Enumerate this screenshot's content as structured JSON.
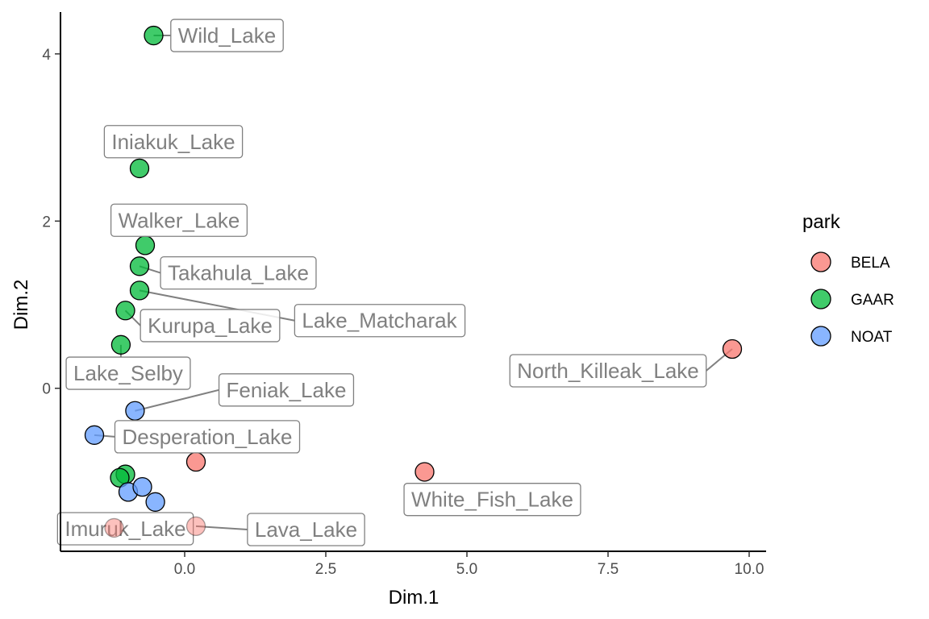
{
  "chart_data": {
    "type": "scatter",
    "title": "",
    "xlabel": "Dim.1",
    "ylabel": "Dim.2",
    "xlim": [
      -2.2,
      10.3
    ],
    "ylim": [
      -1.95,
      4.5
    ],
    "xticks": [
      {
        "value": 0,
        "label": "0.0"
      },
      {
        "value": 2.5,
        "label": "2.5"
      },
      {
        "value": 5,
        "label": "5.0"
      },
      {
        "value": 7.5,
        "label": "7.5"
      },
      {
        "value": 10,
        "label": "10.0"
      }
    ],
    "yticks": [
      {
        "value": 0,
        "label": "0"
      },
      {
        "value": 2,
        "label": "2"
      },
      {
        "value": 4,
        "label": "4"
      }
    ],
    "grid": false,
    "legend": {
      "title": "park",
      "position": "right",
      "entries": [
        {
          "name": "BELA",
          "color": "#F8766D"
        },
        {
          "name": "GAAR",
          "color": "#00BA38"
        },
        {
          "name": "NOAT",
          "color": "#619CFF"
        }
      ]
    },
    "points": [
      {
        "x": -0.55,
        "y": 4.22,
        "park": "GAAR",
        "label": "Wild_Lake",
        "lx": 0.75,
        "ly": 4.22
      },
      {
        "x": -0.8,
        "y": 2.63,
        "park": "GAAR",
        "label": "Iniakuk_Lake",
        "lx": -0.2,
        "ly": 2.95
      },
      {
        "x": -0.7,
        "y": 1.71,
        "park": "GAAR",
        "label": "Walker_Lake",
        "lx": -0.1,
        "ly": 2.01
      },
      {
        "x": -0.8,
        "y": 1.46,
        "park": "GAAR",
        "label": "Takahula_Lake",
        "lx": 0.95,
        "ly": 1.38
      },
      {
        "x": -0.8,
        "y": 1.17,
        "park": "GAAR",
        "label": "Lake_Matcharak",
        "lx": 3.45,
        "ly": 0.81
      },
      {
        "x": -1.05,
        "y": 0.93,
        "park": "GAAR",
        "label": "Kurupa_Lake",
        "lx": 0.45,
        "ly": 0.75
      },
      {
        "x": -1.13,
        "y": 0.52,
        "park": "GAAR",
        "label": "Lake_Selby",
        "lx": -1.0,
        "ly": 0.18
      },
      {
        "x": -0.88,
        "y": -0.27,
        "park": "NOAT",
        "label": "Feniak_Lake",
        "lx": 1.8,
        "ly": -0.02
      },
      {
        "x": -1.6,
        "y": -0.56,
        "park": "NOAT",
        "label": "Desperation_Lake",
        "lx": 0.4,
        "ly": -0.58
      },
      {
        "x": 0.2,
        "y": -0.88,
        "park": "BELA",
        "label": "",
        "lx": null,
        "ly": null
      },
      {
        "x": -1.05,
        "y": -1.03,
        "park": "GAAR",
        "label": "",
        "lx": null,
        "ly": null
      },
      {
        "x": -1.15,
        "y": -1.07,
        "park": "GAAR",
        "label": "",
        "lx": null,
        "ly": null
      },
      {
        "x": -1.0,
        "y": -1.24,
        "park": "NOAT",
        "label": "",
        "lx": null,
        "ly": null
      },
      {
        "x": -0.75,
        "y": -1.18,
        "park": "NOAT",
        "label": "",
        "lx": null,
        "ly": null
      },
      {
        "x": -0.52,
        "y": -1.36,
        "park": "NOAT",
        "label": "",
        "lx": null,
        "ly": null
      },
      {
        "x": 4.25,
        "y": -1.0,
        "park": "BELA",
        "label": "",
        "lx": null,
        "ly": null
      },
      {
        "x": 9.7,
        "y": 0.47,
        "park": "BELA",
        "label": "North_Killeak_Lake",
        "lx": 7.5,
        "ly": 0.21
      },
      {
        "x": 4.25,
        "y": -1.0,
        "park": "BELA",
        "label": "White_Fish_Lake",
        "lx": 5.45,
        "ly": -1.33,
        "hidden_point": true
      },
      {
        "x": -1.25,
        "y": -1.67,
        "park": "BELA",
        "label": "Imuruk_Lake",
        "lx": -1.05,
        "ly": -1.68,
        "faded": true
      },
      {
        "x": 0.2,
        "y": -1.65,
        "park": "BELA",
        "label": "Lava_Lake",
        "lx": 2.15,
        "ly": -1.69,
        "faded": true
      }
    ]
  }
}
